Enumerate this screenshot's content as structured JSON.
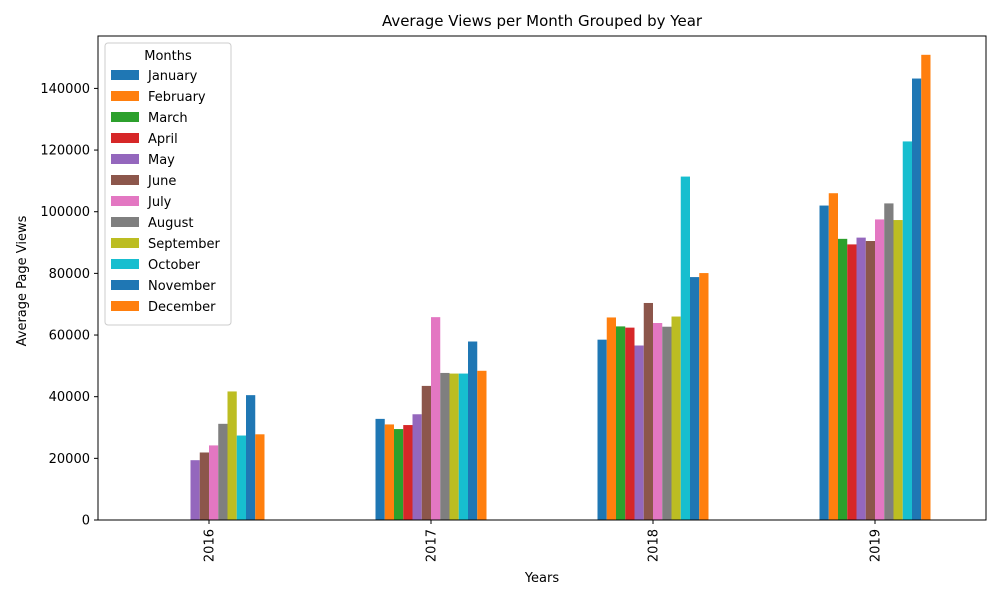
{
  "chart_data": {
    "type": "bar",
    "title": "Average Views per Month Grouped by Year",
    "xlabel": "Years",
    "ylabel": "Average Page Views",
    "categories": [
      "2016",
      "2017",
      "2018",
      "2019"
    ],
    "ylim": [
      0,
      157000
    ],
    "yticks": [
      0,
      20000,
      40000,
      60000,
      80000,
      100000,
      120000,
      140000
    ],
    "legend": {
      "title": "Months",
      "placement": "top-left"
    },
    "grid": false,
    "series": [
      {
        "name": "January",
        "color": "#1f77b4",
        "values": [
          null,
          32800,
          58500,
          102000
        ]
      },
      {
        "name": "February",
        "color": "#ff7f0e",
        "values": [
          null,
          31000,
          65700,
          106000
        ]
      },
      {
        "name": "March",
        "color": "#2ca02c",
        "values": [
          null,
          29500,
          62800,
          91200
        ]
      },
      {
        "name": "April",
        "color": "#d62728",
        "values": [
          null,
          30800,
          62400,
          89400
        ]
      },
      {
        "name": "May",
        "color": "#9467bd",
        "values": [
          19400,
          34300,
          56600,
          91600
        ]
      },
      {
        "name": "June",
        "color": "#8c564b",
        "values": [
          21900,
          43500,
          70400,
          90500
        ]
      },
      {
        "name": "July",
        "color": "#e377c2",
        "values": [
          24200,
          65800,
          63900,
          97500
        ]
      },
      {
        "name": "August",
        "color": "#7f7f7f",
        "values": [
          31200,
          47700,
          62700,
          102700
        ]
      },
      {
        "name": "September",
        "color": "#bcbd22",
        "values": [
          41700,
          47500,
          66000,
          97300
        ]
      },
      {
        "name": "October",
        "color": "#17becf",
        "values": [
          27400,
          47500,
          111400,
          122800
        ]
      },
      {
        "name": "November",
        "color": "#1f77b4",
        "values": [
          40500,
          57900,
          78800,
          143200
        ]
      },
      {
        "name": "December",
        "color": "#ff7f0e",
        "values": [
          27800,
          48400,
          80100,
          150900
        ]
      }
    ]
  }
}
